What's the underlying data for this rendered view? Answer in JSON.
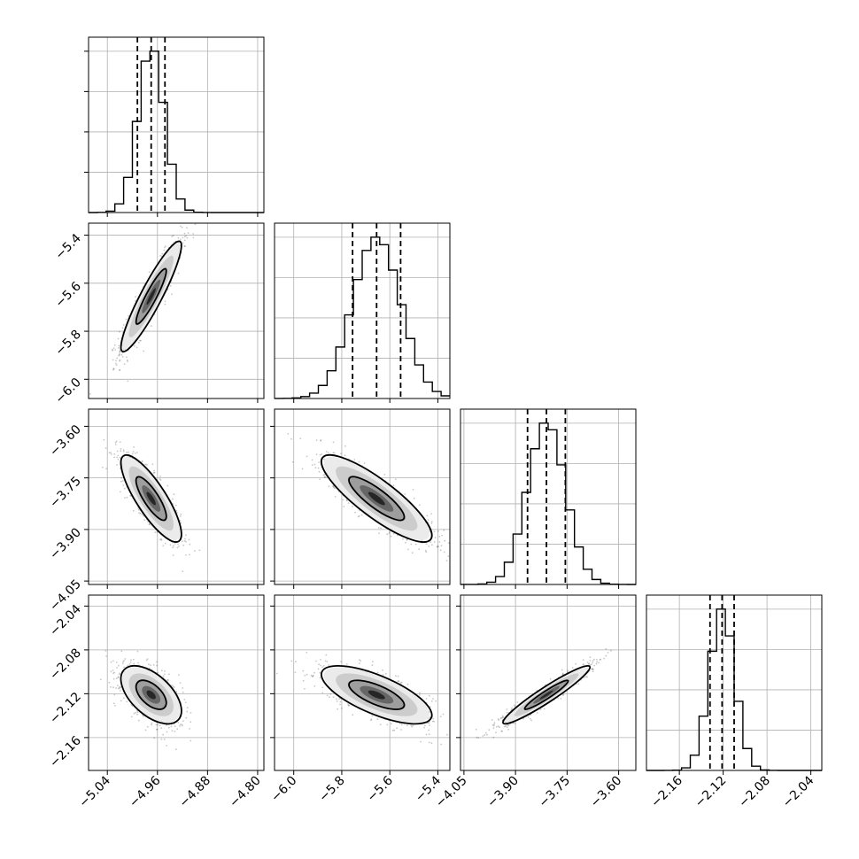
{
  "chart_data": {
    "type": "corner",
    "parameters": [
      {
        "index": 0,
        "mean": -4.97,
        "std": 0.021,
        "quantiles": [
          -4.992,
          -4.97,
          -4.948
        ],
        "range": [
          -5.07,
          -4.79
        ],
        "ticks": [
          -5.04,
          -4.96,
          -4.88,
          -4.8
        ],
        "tick_labels": [
          "−5.04",
          "−4.96",
          "−4.88",
          "−4.80"
        ]
      },
      {
        "index": 1,
        "mean": -5.655,
        "std": 0.1,
        "quantiles": [
          -5.755,
          -5.655,
          -5.555
        ],
        "range": [
          -6.08,
          -5.35
        ],
        "ticks": [
          -6.0,
          -5.8,
          -5.6,
          -5.4
        ],
        "tick_labels": [
          "−6.0",
          "−5.8",
          "−5.6",
          "−5.4"
        ]
      },
      {
        "index": 2,
        "mean": -3.81,
        "std": 0.055,
        "quantiles": [
          -3.865,
          -3.81,
          -3.755
        ],
        "range": [
          -4.06,
          -3.55
        ],
        "ticks": [
          -4.05,
          -3.9,
          -3.75,
          -3.6
        ],
        "tick_labels": [
          "−4.05",
          "−3.90",
          "−3.75",
          "−3.60"
        ]
      },
      {
        "index": 3,
        "mean": -2.121,
        "std": 0.0115,
        "quantiles": [
          -2.132,
          -2.121,
          -2.11
        ],
        "range": [
          -2.19,
          -2.03
        ],
        "ticks": [
          -2.16,
          -2.12,
          -2.08,
          -2.04
        ],
        "tick_labels": [
          "−2.16",
          "−2.12",
          "−2.08",
          "−2.04"
        ]
      }
    ],
    "correlations": {
      "0-1": 0.92,
      "0-2": -0.82,
      "0-3": -0.55,
      "1-2": -0.85,
      "1-3": -0.7,
      "2-3": 0.95
    },
    "quantile_levels": [
      0.16,
      0.5,
      0.84
    ],
    "contour_levels": [
      0.39,
      0.86
    ],
    "hist_bins": 20,
    "grid": true
  }
}
